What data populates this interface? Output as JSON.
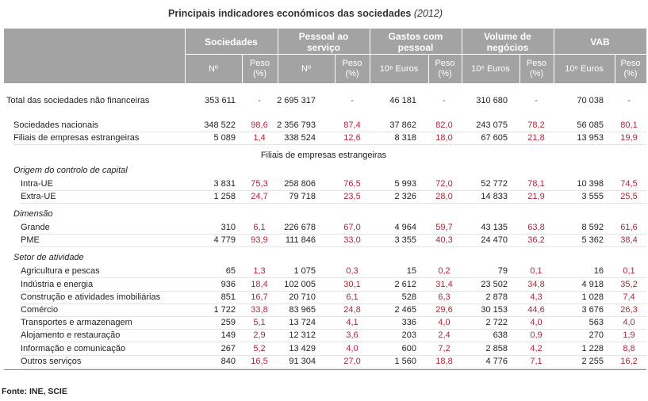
{
  "title": "Principais indicadores económicos das sociedades",
  "title_year": "(2012)",
  "header": {
    "groups": [
      "Sociedades",
      "Pessoal ao serviço",
      "Gastos com pessoal",
      "Volume de negócios",
      "VAB"
    ],
    "subs": [
      "Nº",
      "Peso (%)",
      "Nº",
      "Peso (%)",
      "10⁶ Euros",
      "Peso (%)",
      "10⁶ Euros",
      "Peso (%)",
      "10⁶ Euros",
      "Peso (%)"
    ]
  },
  "total": {
    "label": "Total das sociedades não financeiras",
    "cells": [
      "353 611",
      "-",
      "2 695 317",
      "-",
      "46 181",
      "-",
      "310 680",
      "-",
      "70 038",
      "-"
    ]
  },
  "origin_rows": [
    {
      "label": "Sociedades nacionais",
      "cells": [
        "348 522",
        "98,6",
        "2 356 793",
        "87,4",
        "37 862",
        "82,0",
        "243 075",
        "78,2",
        "56 085",
        "80,1"
      ]
    },
    {
      "label": "Filiais de empresas estrangeiras",
      "cells": [
        "5 089",
        "1,4",
        "338 524",
        "12,6",
        "8 318",
        "18,0",
        "67 605",
        "21,8",
        "13 953",
        "19,9"
      ]
    }
  ],
  "foreign_title": "Filiais de empresas estrangeiras",
  "sections": [
    {
      "title": "Origem do controlo de capital",
      "rows": [
        {
          "label": "Intra-UE",
          "cells": [
            "3 831",
            "75,3",
            "258 806",
            "76,5",
            "5 993",
            "72,0",
            "52 772",
            "78,1",
            "10 398",
            "74,5"
          ]
        },
        {
          "label": "Extra-UE",
          "cells": [
            "1 258",
            "24,7",
            "79 718",
            "23,5",
            "2 326",
            "28,0",
            "14 833",
            "21,9",
            "3 555",
            "25,5"
          ]
        }
      ]
    },
    {
      "title": "Dimensão",
      "rows": [
        {
          "label": "Grande",
          "cells": [
            "310",
            "6,1",
            "226 678",
            "67,0",
            "4 964",
            "59,7",
            "43 135",
            "63,8",
            "8 592",
            "61,6"
          ]
        },
        {
          "label": "PME",
          "cells": [
            "4 779",
            "93,9",
            "111 846",
            "33,0",
            "3 355",
            "40,3",
            "24 470",
            "36,2",
            "5 362",
            "38,4"
          ]
        }
      ]
    },
    {
      "title": "Setor de atividade",
      "rows": [
        {
          "label": "Agricultura e pescas",
          "cells": [
            "65",
            "1,3",
            "1 075",
            "0,3",
            "15",
            "0,2",
            "79",
            "0,1",
            "16",
            "0,1"
          ]
        },
        {
          "label": "Indústria e energia",
          "cells": [
            "936",
            "18,4",
            "102 005",
            "30,1",
            "2 612",
            "31,4",
            "23 502",
            "34,8",
            "4 918",
            "35,2"
          ]
        },
        {
          "label": "Construção e atividades imobiliárias",
          "cells": [
            "851",
            "16,7",
            "20 710",
            "6,1",
            "528",
            "6,3",
            "2 878",
            "4,3",
            "1 028",
            "7,4"
          ]
        },
        {
          "label": "Comércio",
          "cells": [
            "1 722",
            "33,8",
            "83 965",
            "24,8",
            "2 465",
            "29,6",
            "30 153",
            "44,6",
            "3 676",
            "26,3"
          ]
        },
        {
          "label": "Transportes e armazenagem",
          "cells": [
            "259",
            "5,1",
            "13 724",
            "4,1",
            "336",
            "4,0",
            "2 722",
            "4,0",
            "563",
            "4,0"
          ]
        },
        {
          "label": "Alojamento e restauração",
          "cells": [
            "149",
            "2,9",
            "12 312",
            "3,6",
            "203",
            "2,4",
            "638",
            "0,9",
            "270",
            "1,9"
          ]
        },
        {
          "label": "Informação e comunicação",
          "cells": [
            "267",
            "5,2",
            "13 429",
            "4,0",
            "600",
            "7,2",
            "2 858",
            "4,2",
            "1 228",
            "8,8"
          ]
        },
        {
          "label": "Outros serviços",
          "cells": [
            "840",
            "16,5",
            "91 304",
            "27,0",
            "1 560",
            "18,8",
            "4 776",
            "7,1",
            "2 255",
            "16,2"
          ]
        }
      ]
    }
  ],
  "source": "Fonte: INE, SCIE"
}
